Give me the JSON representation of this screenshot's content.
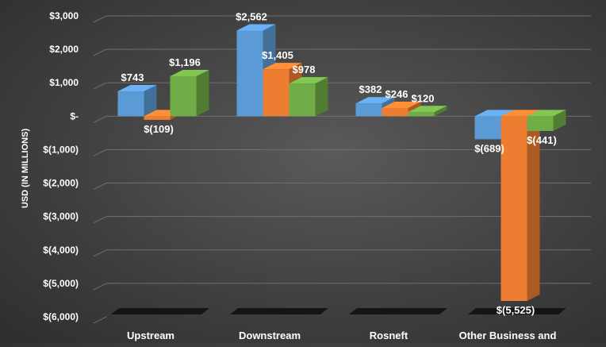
{
  "chart_data": {
    "type": "bar",
    "ylabel": "USD (IN MILLIONS)",
    "ylim": [
      -6000,
      3000
    ],
    "yticks": [
      3000,
      2000,
      1000,
      0,
      -1000,
      -2000,
      -3000,
      -4000,
      -5000,
      -6000
    ],
    "ytick_labels": [
      "$3,000",
      "$2,000",
      "$1,000",
      "$-",
      "$(1,000)",
      "$(2,000)",
      "$(3,000)",
      "$(4,000)",
      "$(5,000)",
      "$(6,000)"
    ],
    "categories": [
      "Upstream",
      "Downstream",
      "Rosneft",
      "Other Business and"
    ],
    "grid": true,
    "legend": "none",
    "series": [
      {
        "color": "#5b9bd5",
        "values": [
          743,
          2562,
          382,
          -689
        ],
        "labels": [
          "$743",
          "$2,562",
          "$382",
          "$(689)"
        ]
      },
      {
        "color": "#ed7d31",
        "values": [
          -109,
          1405,
          246,
          -5525
        ],
        "labels": [
          "$(109)",
          "$1,405",
          "$246",
          "$(5,525)"
        ]
      },
      {
        "color": "#70ad47",
        "values": [
          1196,
          978,
          120,
          -441
        ],
        "labels": [
          "$1,196",
          "$978",
          "$120",
          "$(441)"
        ]
      }
    ]
  }
}
